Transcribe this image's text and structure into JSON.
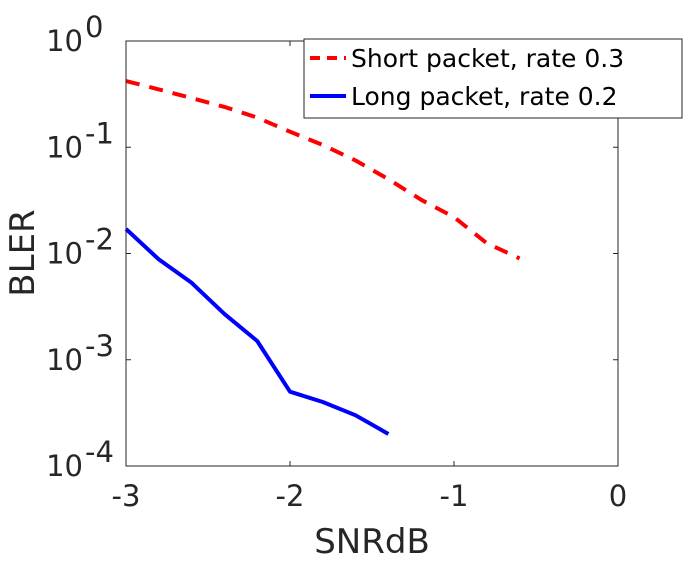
{
  "chart_data": {
    "type": "line",
    "xlabel": "SNRdB",
    "ylabel": "BLER",
    "xlim": [
      -3,
      0
    ],
    "ylim": [
      0.0001,
      1
    ],
    "yscale": "log",
    "grid": false,
    "legend_position": "top-right",
    "x_ticks": [
      {
        "value": -3,
        "label": "-3"
      },
      {
        "value": -2,
        "label": "-2"
      },
      {
        "value": -1,
        "label": "-1"
      },
      {
        "value": 0,
        "label": "0"
      }
    ],
    "y_ticks": [
      {
        "value": 0.0001,
        "base": "10",
        "exp": "-4"
      },
      {
        "value": 0.001,
        "base": "10",
        "exp": "-3"
      },
      {
        "value": 0.01,
        "base": "10",
        "exp": "-2"
      },
      {
        "value": 0.1,
        "base": "10",
        "exp": "-1"
      },
      {
        "value": 1,
        "base": "10",
        "exp": "0"
      }
    ],
    "series": [
      {
        "name": "Short packet, rate 0.3",
        "color": "#ff0000",
        "style": "dashed",
        "x": [
          -3.0,
          -2.8,
          -2.6,
          -2.4,
          -2.2,
          -2.0,
          -1.8,
          -1.6,
          -1.4,
          -1.2,
          -1.0,
          -0.8,
          -0.6
        ],
        "y": [
          0.42,
          0.35,
          0.29,
          0.24,
          0.19,
          0.14,
          0.105,
          0.075,
          0.05,
          0.032,
          0.022,
          0.0125,
          0.009
        ]
      },
      {
        "name": "Long packet, rate 0.2",
        "color": "#0000ff",
        "style": "solid",
        "x": [
          -3.0,
          -2.8,
          -2.6,
          -2.4,
          -2.2,
          -2.0,
          -1.8,
          -1.6,
          -1.4
        ],
        "y": [
          0.017,
          0.0088,
          0.0053,
          0.0027,
          0.0015,
          0.0005,
          0.0004,
          0.0003,
          0.0002
        ]
      }
    ]
  }
}
